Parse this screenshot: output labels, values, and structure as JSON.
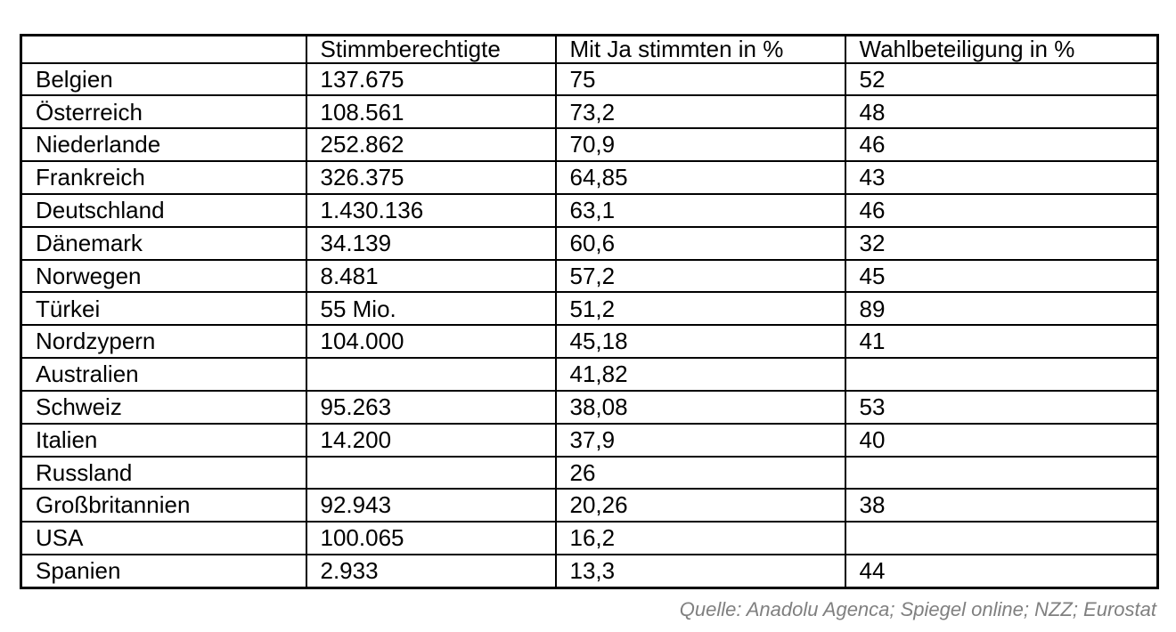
{
  "table": {
    "columns": [
      "",
      "Stimmberechtigte",
      "Mit Ja stimmten in %",
      "Wahlbeteiligung in %"
    ],
    "rows": [
      [
        "Belgien",
        "137.675",
        "75",
        "52"
      ],
      [
        "Österreich",
        "108.561",
        "73,2",
        "48"
      ],
      [
        "Niederlande",
        "252.862",
        "70,9",
        "46"
      ],
      [
        "Frankreich",
        "326.375",
        "64,85",
        "43"
      ],
      [
        "Deutschland",
        "1.430.136",
        "63,1",
        "46"
      ],
      [
        "Dänemark",
        "34.139",
        "60,6",
        "32"
      ],
      [
        "Norwegen",
        "8.481",
        "57,2",
        "45"
      ],
      [
        "Türkei",
        "55 Mio.",
        "51,2",
        "89"
      ],
      [
        "Nordzypern",
        "104.000",
        "45,18",
        "41"
      ],
      [
        "Australien",
        "",
        "41,82",
        ""
      ],
      [
        "Schweiz",
        "95.263",
        "38,08",
        "53"
      ],
      [
        "Italien",
        "14.200",
        "37,9",
        "40"
      ],
      [
        "Russland",
        "",
        "26",
        ""
      ],
      [
        "Großbritannien",
        "92.943",
        "20,26",
        "38"
      ],
      [
        "USA",
        "100.065",
        "16,2",
        ""
      ],
      [
        "Spanien",
        "2.933",
        "13,3",
        "44"
      ]
    ]
  },
  "caption": {
    "source": "Quelle: Anadolu Agenca; Spiegel online; NZZ; Eurostat"
  },
  "colors": {
    "background": "#ffffff",
    "border": "#000000",
    "text": "#000000",
    "caption_text": "#808080"
  }
}
